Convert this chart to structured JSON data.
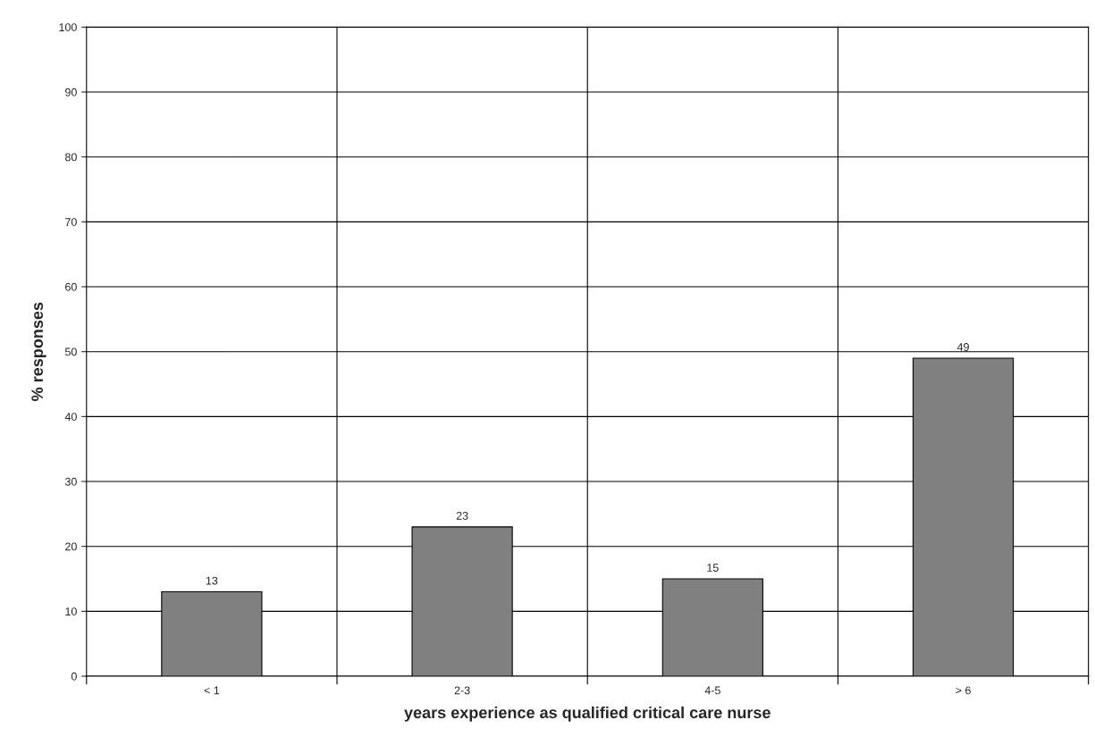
{
  "chart_data": {
    "type": "bar",
    "categories": [
      "< 1",
      "2-3",
      "4-5",
      "> 6"
    ],
    "values": [
      13,
      23,
      15,
      49
    ],
    "color": "#808080",
    "xlabel": "years experience as qualified critical care nurse",
    "ylabel": "% responses",
    "ylim": [
      0,
      100
    ],
    "yticks": [
      0,
      10,
      20,
      30,
      40,
      50,
      60,
      70,
      80,
      90,
      100
    ],
    "grid": true,
    "data_labels": true
  }
}
